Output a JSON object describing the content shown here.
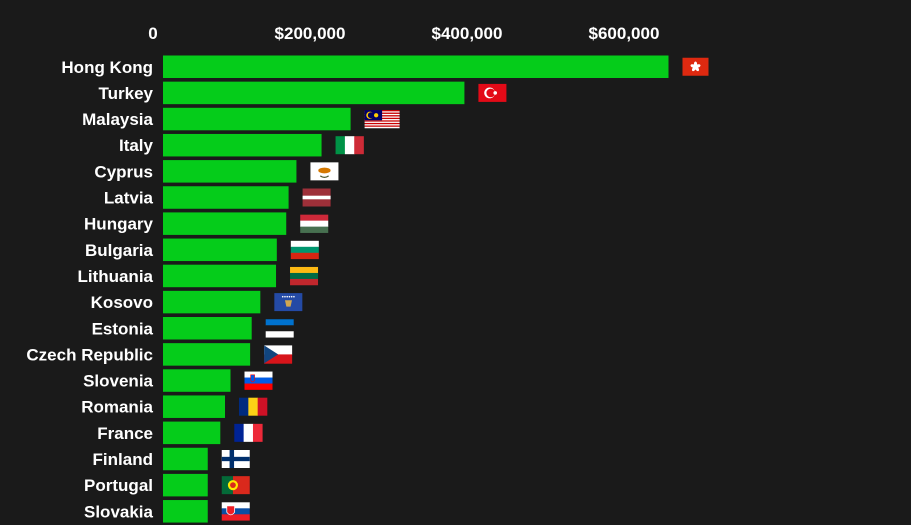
{
  "chart_data": {
    "type": "bar",
    "orientation": "horizontal",
    "categories": [
      "Hong Kong",
      "Turkey",
      "Malaysia",
      "Italy",
      "Cyprus",
      "Latvia",
      "Hungary",
      "Bulgaria",
      "Lithuania",
      "Kosovo",
      "Estonia",
      "Czech Republic",
      "Slovenia",
      "Romania",
      "France",
      "Finland",
      "Portugal",
      "Slovakia"
    ],
    "values": [
      644000,
      384000,
      239000,
      202000,
      170000,
      160000,
      157000,
      145000,
      144000,
      124000,
      113000,
      111000,
      86000,
      79000,
      73000,
      57000,
      57000,
      57000
    ],
    "flags": [
      "flag-hong-kong",
      "flag-turkey",
      "flag-malaysia",
      "flag-italy",
      "flag-cyprus",
      "flag-latvia",
      "flag-hungary",
      "flag-bulgaria",
      "flag-lithuania",
      "flag-kosovo",
      "flag-estonia",
      "flag-czech-republic",
      "flag-slovenia",
      "flag-romania",
      "flag-france",
      "flag-finland",
      "flag-portugal",
      "flag-slovakia"
    ],
    "x_ticks": [
      {
        "value": 0,
        "label": "0"
      },
      {
        "value": 200000,
        "label": "$200,000"
      },
      {
        "value": 400000,
        "label": "$400,000"
      },
      {
        "value": 600000,
        "label": "$600,000"
      }
    ],
    "xlim": [
      0,
      644000
    ],
    "title": "",
    "xlabel": "",
    "ylabel": "",
    "grid": false,
    "axis_position": "top",
    "colors": {
      "bar": "#05cc1a",
      "background": "#1a1a1a",
      "text": "#ffffff"
    }
  }
}
